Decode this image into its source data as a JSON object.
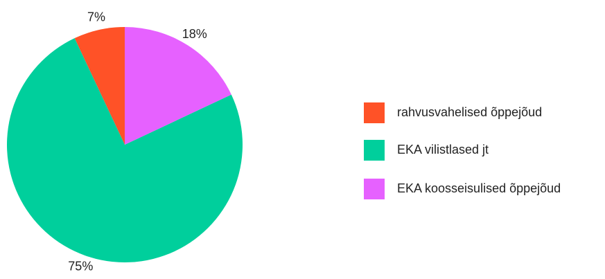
{
  "chart_data": {
    "type": "pie",
    "categories": [
      "rahvusvahelised õppejõud",
      "EKA vilistlased jt",
      "EKA koosseisulised õppejõud"
    ],
    "values": [
      7,
      75,
      18
    ],
    "value_labels": [
      "7%",
      "75%",
      "18%"
    ],
    "colors": [
      "#ff5227",
      "#00cf9c",
      "#e661ff"
    ],
    "legend": "right"
  }
}
